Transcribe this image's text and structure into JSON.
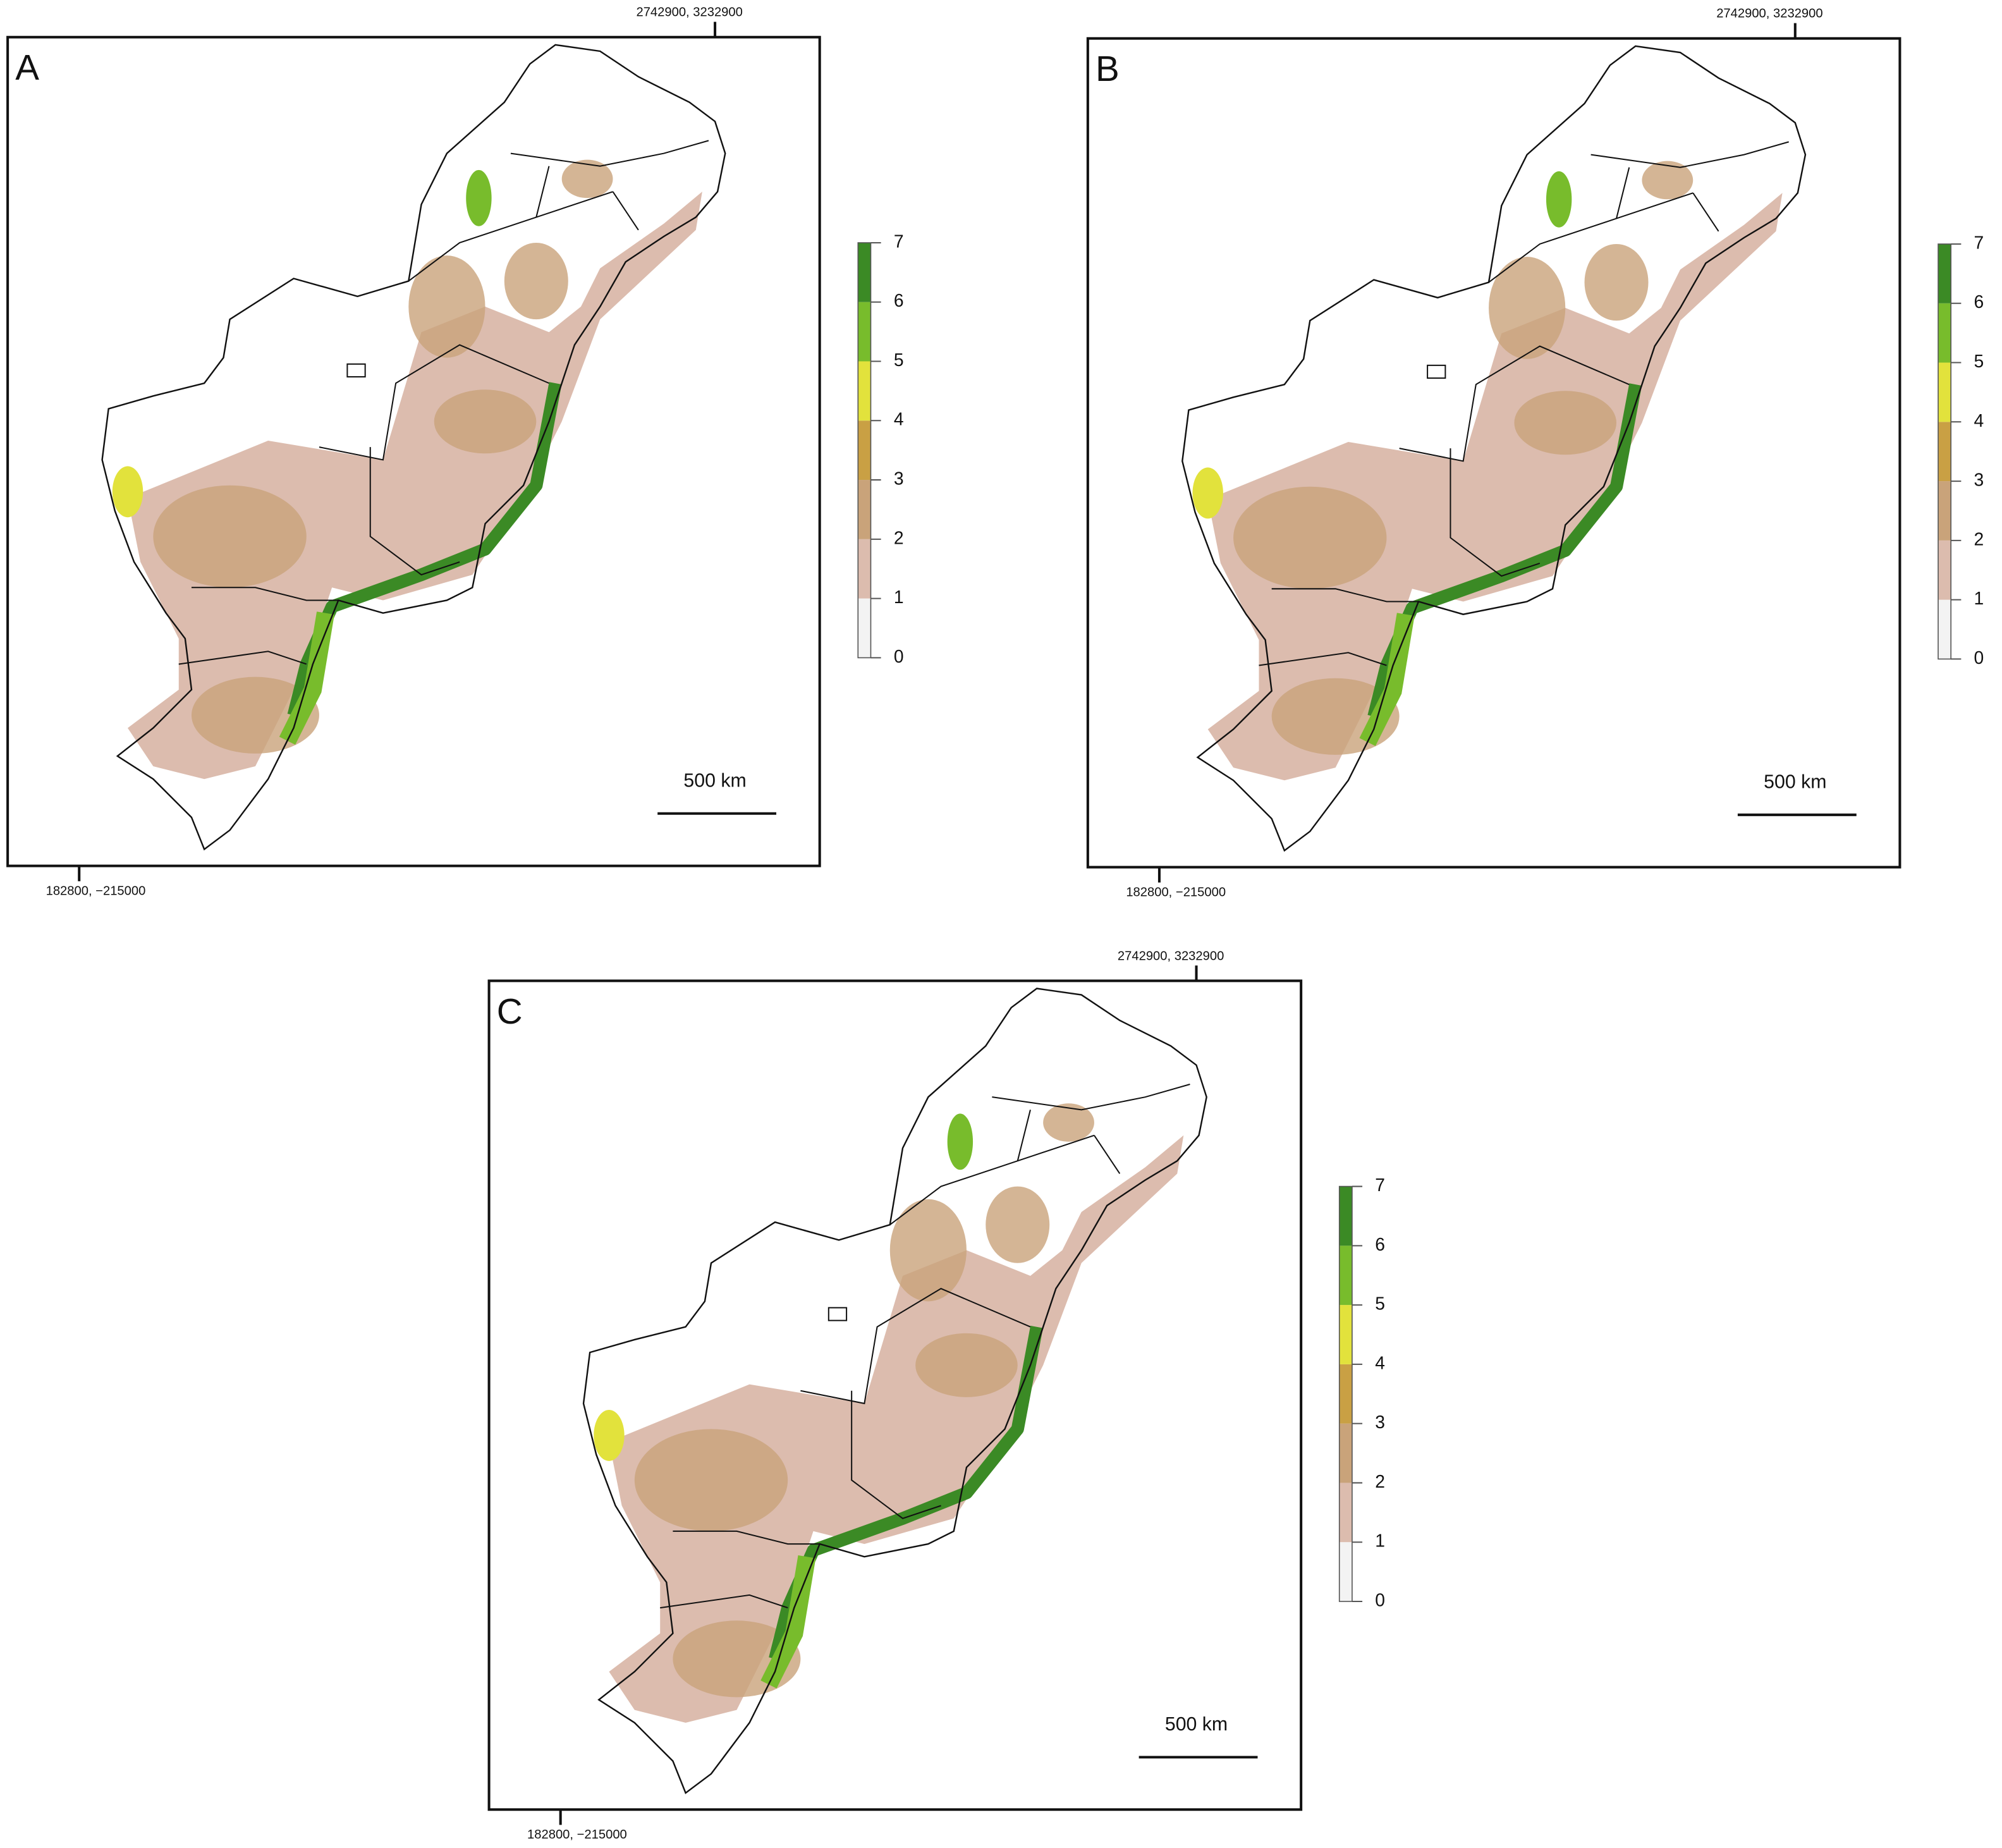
{
  "panels": [
    {
      "label": "A",
      "top_coord": "2742900, 3232900",
      "bottom_coord": "182800, −215000",
      "scale_bar": "500 km"
    },
    {
      "label": "B",
      "top_coord": "2742900, 3232900",
      "bottom_coord": "182800, −215000",
      "scale_bar": "500 km"
    },
    {
      "label": "C",
      "top_coord": "2742900, 3232900",
      "bottom_coord": "182800, −215000",
      "scale_bar": "500 km"
    }
  ],
  "legend": {
    "ticks": [
      0,
      1,
      2,
      3,
      4,
      5,
      6,
      7
    ],
    "colors": [
      "#f3f3f3",
      "#dcbcae",
      "#c9a37a",
      "#c9a044",
      "#e2e23c",
      "#78bc2c",
      "#3b8a25"
    ]
  }
}
